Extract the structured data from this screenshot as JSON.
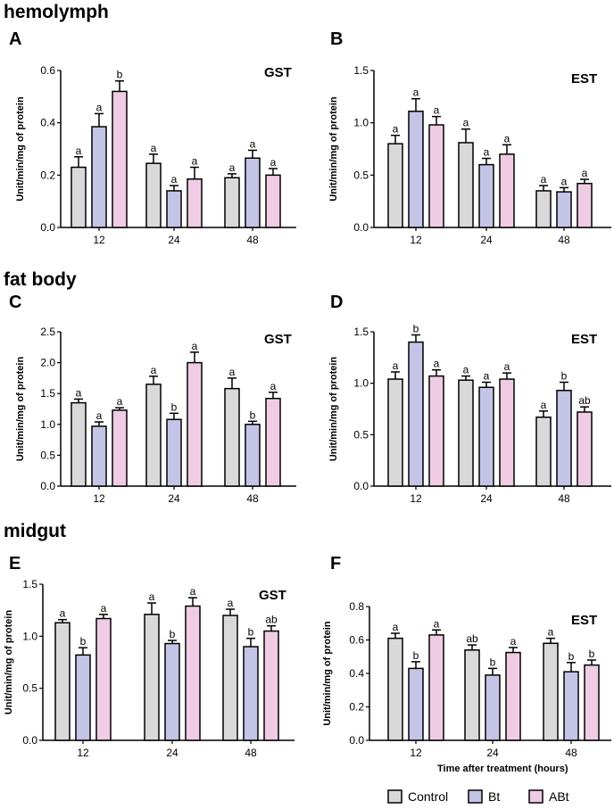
{
  "sections": [
    "hemolymph",
    "fat body",
    "midgut"
  ],
  "legend": [
    {
      "name": "Control",
      "color": "#d9d9d9"
    },
    {
      "name": "Bt",
      "color": "#c4c4e6"
    },
    {
      "name": "ABt",
      "color": "#f0cce4"
    }
  ],
  "xlabel": "Time after treatment (hours)",
  "chart_data": [
    {
      "type": "bar",
      "panel": "A",
      "label": "GST",
      "ylabel": "Unit/min/mg of protein",
      "categories": [
        "12",
        "24",
        "48"
      ],
      "ylim": [
        0,
        0.6
      ],
      "yticks": [
        "0.0",
        "0.2",
        "0.4",
        "0.6"
      ],
      "series": [
        {
          "name": "Control",
          "values": [
            0.23,
            0.245,
            0.19
          ],
          "errors": [
            0.04,
            0.035,
            0.015
          ],
          "letters": [
            "a",
            "a",
            "a"
          ]
        },
        {
          "name": "Bt",
          "values": [
            0.385,
            0.14,
            0.265
          ],
          "errors": [
            0.05,
            0.02,
            0.03
          ],
          "letters": [
            "a",
            "a",
            "a"
          ]
        },
        {
          "name": "ABt",
          "values": [
            0.52,
            0.185,
            0.2
          ],
          "errors": [
            0.04,
            0.045,
            0.025
          ],
          "letters": [
            "b",
            "a",
            "a"
          ]
        }
      ]
    },
    {
      "type": "bar",
      "panel": "B",
      "label": "EST",
      "ylabel": "Unit/min/mg of protein",
      "categories": [
        "12",
        "24",
        "48"
      ],
      "ylim": [
        0,
        1.5
      ],
      "yticks": [
        "0.0",
        "0.5",
        "1.0",
        "1.5"
      ],
      "series": [
        {
          "name": "Control",
          "values": [
            0.8,
            0.81,
            0.35
          ],
          "errors": [
            0.08,
            0.13,
            0.05
          ],
          "letters": [
            "a",
            "a",
            "a"
          ]
        },
        {
          "name": "Bt",
          "values": [
            1.11,
            0.6,
            0.34
          ],
          "errors": [
            0.12,
            0.06,
            0.04
          ],
          "letters": [
            "a",
            "a",
            "a"
          ]
        },
        {
          "name": "ABt",
          "values": [
            0.98,
            0.7,
            0.42
          ],
          "errors": [
            0.08,
            0.09,
            0.04
          ],
          "letters": [
            "a",
            "a",
            "a"
          ]
        }
      ]
    },
    {
      "type": "bar",
      "panel": "C",
      "label": "GST",
      "ylabel": "Unit/min/mg of protein",
      "categories": [
        "12",
        "24",
        "48"
      ],
      "ylim": [
        0,
        2.5
      ],
      "yticks": [
        "0.0",
        "0.5",
        "1.0",
        "1.5",
        "2.0",
        "2.5"
      ],
      "series": [
        {
          "name": "Control",
          "values": [
            1.35,
            1.65,
            1.58
          ],
          "errors": [
            0.06,
            0.13,
            0.17
          ],
          "letters": [
            "a",
            "a",
            "a"
          ]
        },
        {
          "name": "Bt",
          "values": [
            0.97,
            1.08,
            1.0
          ],
          "errors": [
            0.07,
            0.1,
            0.05
          ],
          "letters": [
            "a",
            "b",
            "b"
          ]
        },
        {
          "name": "ABt",
          "values": [
            1.23,
            2.0,
            1.42
          ],
          "errors": [
            0.04,
            0.17,
            0.1
          ],
          "letters": [
            "a",
            "a",
            "a"
          ]
        }
      ]
    },
    {
      "type": "bar",
      "panel": "D",
      "label": "EST",
      "ylabel": "Unit/min/mg of protein",
      "categories": [
        "12",
        "24",
        "48"
      ],
      "ylim": [
        0,
        1.5
      ],
      "yticks": [
        "0.0",
        "0.5",
        "1.0",
        "1.5"
      ],
      "series": [
        {
          "name": "Control",
          "values": [
            1.04,
            1.03,
            0.67
          ],
          "errors": [
            0.07,
            0.04,
            0.06
          ],
          "letters": [
            "a",
            "a",
            "a"
          ]
        },
        {
          "name": "Bt",
          "values": [
            1.4,
            0.96,
            0.93
          ],
          "errors": [
            0.07,
            0.05,
            0.08
          ],
          "letters": [
            "b",
            "a",
            "b"
          ]
        },
        {
          "name": "ABt",
          "values": [
            1.07,
            1.04,
            0.72
          ],
          "errors": [
            0.06,
            0.06,
            0.05
          ],
          "letters": [
            "a",
            "a",
            "ab"
          ]
        }
      ]
    },
    {
      "type": "bar",
      "panel": "E",
      "label": "GST",
      "ylabel": "Unit/min/mg of protein",
      "categories": [
        "12",
        "24",
        "48"
      ],
      "ylim": [
        0,
        1.5
      ],
      "yticks": [
        "0.0",
        "0.5",
        "1.0",
        "1.5"
      ],
      "series": [
        {
          "name": "Control",
          "values": [
            1.13,
            1.21,
            1.2
          ],
          "errors": [
            0.03,
            0.11,
            0.06
          ],
          "letters": [
            "a",
            "a",
            "a"
          ]
        },
        {
          "name": "Bt",
          "values": [
            0.82,
            0.93,
            0.9
          ],
          "errors": [
            0.07,
            0.03,
            0.08
          ],
          "letters": [
            "b",
            "b",
            "b"
          ]
        },
        {
          "name": "ABt",
          "values": [
            1.17,
            1.29,
            1.05
          ],
          "errors": [
            0.04,
            0.08,
            0.05
          ],
          "letters": [
            "a",
            "a",
            "ab"
          ]
        }
      ]
    },
    {
      "type": "bar",
      "panel": "F",
      "label": "EST",
      "ylabel": "Unit/min/mg of protein",
      "categories": [
        "12",
        "24",
        "48"
      ],
      "ylim": [
        0,
        0.8
      ],
      "yticks": [
        "0.0",
        "0.2",
        "0.4",
        "0.6",
        "0.8"
      ],
      "series": [
        {
          "name": "Control",
          "values": [
            0.61,
            0.54,
            0.58
          ],
          "errors": [
            0.03,
            0.03,
            0.03
          ],
          "letters": [
            "a",
            "ab",
            "a"
          ]
        },
        {
          "name": "Bt",
          "values": [
            0.43,
            0.39,
            0.41
          ],
          "errors": [
            0.04,
            0.04,
            0.055
          ],
          "letters": [
            "b",
            "b",
            "b"
          ]
        },
        {
          "name": "ABt",
          "values": [
            0.63,
            0.525,
            0.45
          ],
          "errors": [
            0.03,
            0.03,
            0.03
          ],
          "letters": [
            "a",
            "a",
            "b"
          ]
        }
      ]
    }
  ]
}
